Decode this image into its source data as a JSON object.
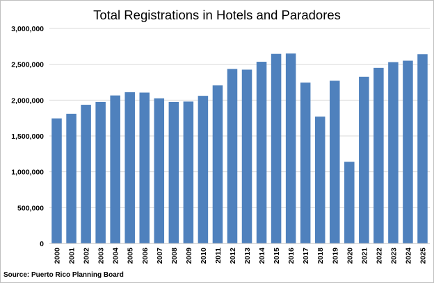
{
  "chart_data": {
    "type": "bar",
    "title": "Total Registrations in Hotels and Paradores",
    "xlabel": "",
    "ylabel": "",
    "categories": [
      "2000",
      "2001",
      "2002",
      "2003",
      "2004",
      "2005",
      "2006",
      "2007",
      "2008",
      "2009",
      "2010",
      "2011",
      "2012",
      "2013",
      "2014",
      "2015",
      "2016",
      "2017",
      "2018",
      "2019",
      "2020",
      "2021",
      "2022",
      "2023",
      "2024",
      "2025"
    ],
    "values": [
      1745000,
      1810000,
      1935000,
      1975000,
      2065000,
      2110000,
      2105000,
      2025000,
      1975000,
      1980000,
      2060000,
      2205000,
      2435000,
      2425000,
      2535000,
      2645000,
      2650000,
      2245000,
      1770000,
      2270000,
      1140000,
      2325000,
      2450000,
      2530000,
      2550000,
      2640000
    ],
    "ylim": [
      0,
      3000000
    ],
    "yticks": [
      0,
      500000,
      1000000,
      1500000,
      2000000,
      2500000,
      3000000
    ],
    "ytick_labels": [
      "0",
      "500,000",
      "1,000,000",
      "1,500,000",
      "2,000,000",
      "2,500,000",
      "3,000,000"
    ],
    "grid": true,
    "legend": "none",
    "bar_color": "#4f81bd",
    "grid_color": "#d9d9d9",
    "source": "Source: Puerto Rico Planning Board"
  }
}
